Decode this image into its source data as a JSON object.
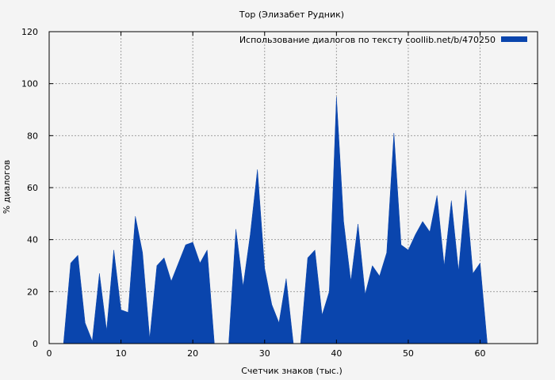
{
  "chart_data": {
    "type": "area",
    "title": "Тор (Элизабет Рудник)",
    "xlabel": "Счетчик знаков (тыс.)",
    "ylabel": "% диалогов",
    "xlim": [
      0,
      68
    ],
    "ylim": [
      0,
      120
    ],
    "x_ticks": [
      0,
      10,
      20,
      30,
      40,
      50,
      60
    ],
    "y_ticks": [
      0,
      20,
      40,
      60,
      80,
      100,
      120
    ],
    "grid": true,
    "legend_position": "top-right",
    "series_color": "#0a45ad",
    "series": [
      {
        "name": "Использование диалогов по тексту  coollib.net/b/470250",
        "points": [
          [
            2,
            0
          ],
          [
            3,
            31
          ],
          [
            4,
            34
          ],
          [
            5,
            8
          ],
          [
            6,
            1
          ],
          [
            7,
            27
          ],
          [
            8,
            5
          ],
          [
            9,
            36
          ],
          [
            10,
            13
          ],
          [
            11,
            12
          ],
          [
            12,
            49
          ],
          [
            13,
            35
          ],
          [
            14,
            2
          ],
          [
            15,
            30
          ],
          [
            16,
            33
          ],
          [
            17,
            24
          ],
          [
            18,
            31
          ],
          [
            19,
            38
          ],
          [
            20,
            39
          ],
          [
            21,
            31
          ],
          [
            22,
            36
          ],
          [
            23,
            0
          ],
          [
            25,
            0
          ],
          [
            26,
            44
          ],
          [
            27,
            22
          ],
          [
            28,
            42
          ],
          [
            29,
            67
          ],
          [
            30,
            29
          ],
          [
            31,
            15
          ],
          [
            32,
            8
          ],
          [
            33,
            25
          ],
          [
            34,
            0
          ],
          [
            35,
            0
          ],
          [
            36,
            33
          ],
          [
            37,
            36
          ],
          [
            38,
            11
          ],
          [
            39,
            20
          ],
          [
            40,
            95
          ],
          [
            41,
            47
          ],
          [
            42,
            24
          ],
          [
            43,
            46
          ],
          [
            44,
            19
          ],
          [
            45,
            30
          ],
          [
            46,
            26
          ],
          [
            47,
            35
          ],
          [
            48,
            81
          ],
          [
            49,
            38
          ],
          [
            50,
            36
          ],
          [
            51,
            42
          ],
          [
            52,
            47
          ],
          [
            53,
            43
          ],
          [
            54,
            57
          ],
          [
            55,
            30
          ],
          [
            56,
            55
          ],
          [
            57,
            28
          ],
          [
            58,
            59
          ],
          [
            59,
            27
          ],
          [
            60,
            31
          ],
          [
            61,
            0
          ]
        ]
      }
    ]
  }
}
